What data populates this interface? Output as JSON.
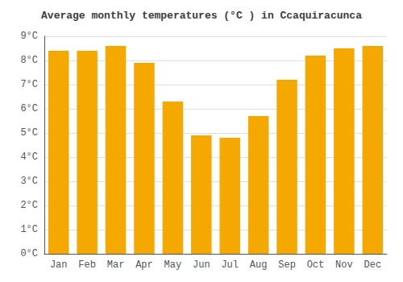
{
  "chart_data": {
    "type": "bar",
    "title": "Average monthly temperatures (°C ) in Ccaquiracunca",
    "categories": [
      "Jan",
      "Feb",
      "Mar",
      "Apr",
      "May",
      "Jun",
      "Jul",
      "Aug",
      "Sep",
      "Oct",
      "Nov",
      "Dec"
    ],
    "values": [
      8.4,
      8.4,
      8.6,
      7.9,
      6.3,
      4.9,
      4.8,
      5.7,
      7.2,
      8.2,
      8.5,
      8.6
    ],
    "color": "#F5A800",
    "ylim": [
      0,
      9
    ],
    "yticks": [
      {
        "value": 0,
        "label": "0°C"
      },
      {
        "value": 1,
        "label": "1°C"
      },
      {
        "value": 2,
        "label": "2°C"
      },
      {
        "value": 3,
        "label": "3°C"
      },
      {
        "value": 4,
        "label": "4°C"
      },
      {
        "value": 5,
        "label": "5°C"
      },
      {
        "value": 6,
        "label": "6°C"
      },
      {
        "value": 7,
        "label": "7°C"
      },
      {
        "value": 8,
        "label": "8°C"
      },
      {
        "value": 9,
        "label": "9°C"
      }
    ],
    "grid": true
  }
}
